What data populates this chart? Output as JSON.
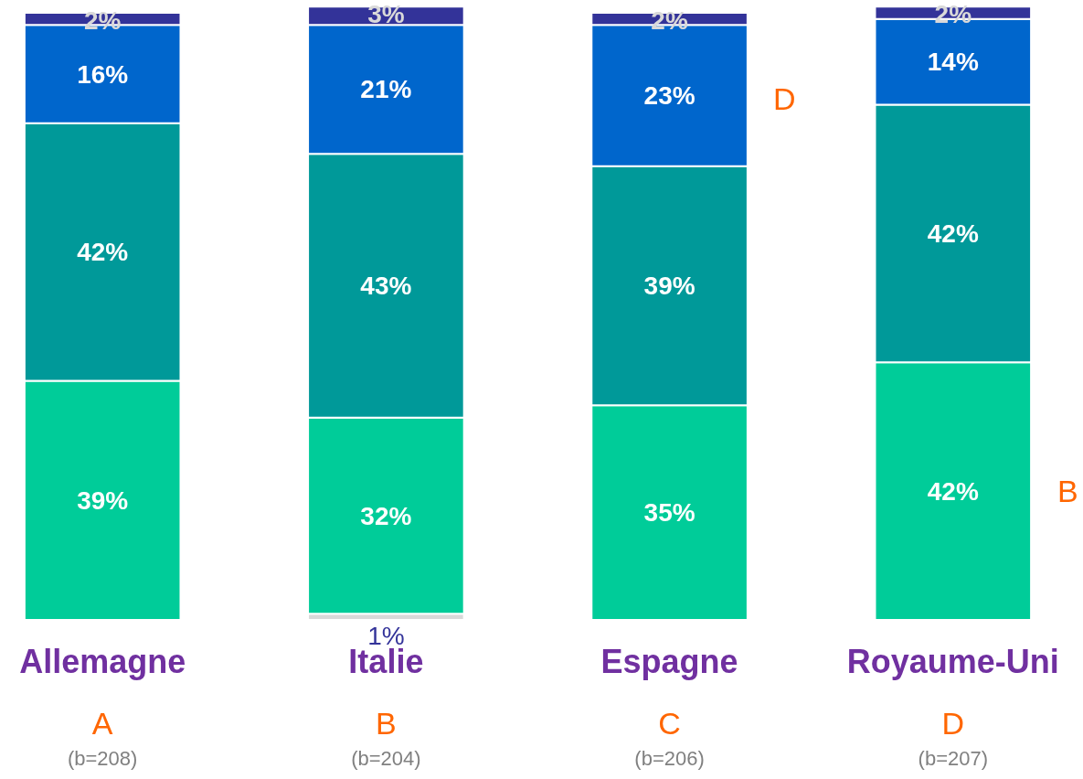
{
  "chart_data": {
    "type": "bar",
    "stacked": true,
    "categories": [
      "Allemagne",
      "Italie",
      "Espagne",
      "Royaume-Uni"
    ],
    "series": [
      {
        "color": "#d9d9d9",
        "values": [
          null,
          1,
          null,
          null
        ],
        "value_labels": [
          null,
          "1%",
          null,
          null
        ]
      },
      {
        "color": "#00cc99",
        "values": [
          39,
          32,
          35,
          42
        ],
        "value_labels": [
          "39%",
          "32%",
          "35%",
          "42%"
        ]
      },
      {
        "color": "#009999",
        "values": [
          42,
          43,
          39,
          42
        ],
        "value_labels": [
          "42%",
          "43%",
          "39%",
          "42%"
        ]
      },
      {
        "color": "#0066cc",
        "values": [
          16,
          21,
          23,
          14
        ],
        "value_labels": [
          "16%",
          "21%",
          "23%",
          "14%"
        ]
      },
      {
        "color": "#333399",
        "values": [
          2,
          3,
          2,
          2
        ],
        "value_labels": [
          "2%",
          "3%",
          "2%",
          "2%"
        ]
      }
    ],
    "annotations": [
      "A",
      "(b=208)",
      "B",
      "(b=204)",
      "C",
      "(b=206)",
      "D",
      "(b=207)",
      "D",
      "B"
    ],
    "grid": false
  }
}
